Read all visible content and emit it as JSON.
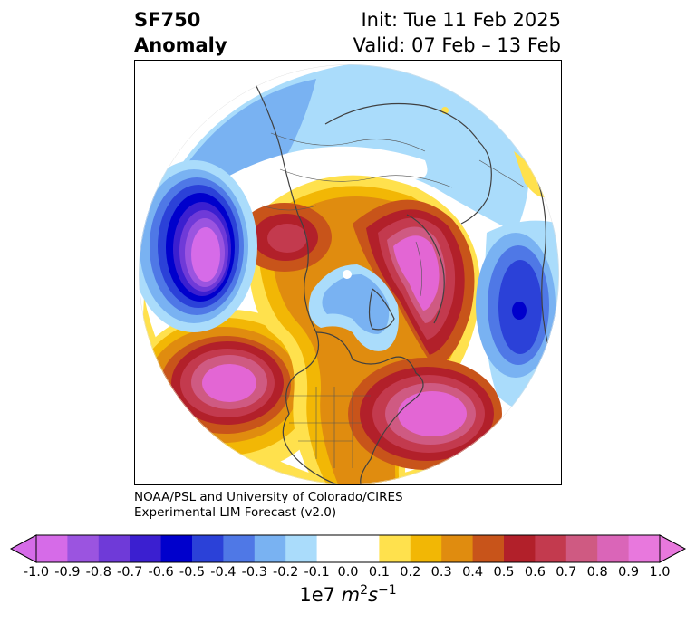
{
  "title": {
    "left_line1": "SF750",
    "left_line2": "Anomaly",
    "right_line1": "Init: Tue 11 Feb 2025",
    "right_line2": "Valid: 07 Feb – 13 Feb"
  },
  "credit": {
    "line1": "NOAA/PSL and University of Colorado/CIRES",
    "line2": "Experimental LIM Forecast (v2.0)"
  },
  "colorbar": {
    "ticks": [
      "-1.0",
      "-0.9",
      "-0.8",
      "-0.7",
      "-0.6",
      "-0.5",
      "-0.4",
      "-0.3",
      "-0.2",
      "-0.1",
      "0.0",
      "0.1",
      "0.2",
      "0.3",
      "0.4",
      "0.5",
      "0.6",
      "0.7",
      "0.8",
      "0.9",
      "1.0"
    ],
    "colors": [
      "#9b54e0",
      "#6f3ad8",
      "#3b1fd0",
      "#0000cc",
      "#2b41d8",
      "#4f78e6",
      "#79b2f2",
      "#aadcfb",
      "#ffffff",
      "#ffe14d",
      "#f2b705",
      "#e08c0f",
      "#c8541a",
      "#b2202a",
      "#c33a4e",
      "#cf5a82",
      "#da65b8"
    ],
    "left_end_color": "#d66be8",
    "right_end_color": "#e878dd",
    "units_prefix": "1e7 ",
    "units_math": "m",
    "units_exp1": "2",
    "units_mid": "s",
    "units_exp2": "−1"
  }
}
